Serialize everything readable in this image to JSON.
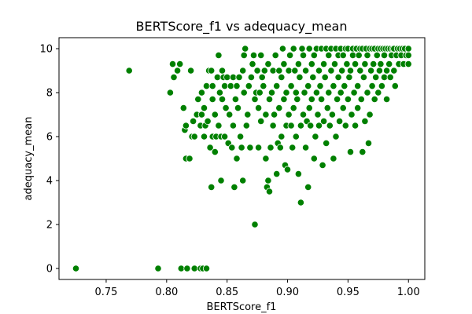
{
  "chart_data": {
    "type": "scatter",
    "title": "BERTScore_f1 vs adequacy_mean",
    "xlabel": "BERTScore_f1",
    "ylabel": "adequacy_mean",
    "xlim": [
      0.711,
      1.0135
    ],
    "ylim": [
      -0.5,
      10.5
    ],
    "xticks": [
      0.75,
      0.8,
      0.85,
      0.9,
      0.95,
      1.0
    ],
    "xtick_labels": [
      "0.75",
      "0.80",
      "0.85",
      "0.90",
      "0.95",
      "1.00"
    ],
    "yticks": [
      0,
      2,
      4,
      6,
      8,
      10
    ],
    "ytick_labels": [
      "0",
      "2",
      "4",
      "6",
      "8",
      "10"
    ],
    "grid": false,
    "legend": "none",
    "marker_color": "#008000",
    "marker_edge": "#ffffff",
    "points": [
      [
        0.725,
        0
      ],
      [
        0.793,
        0
      ],
      [
        0.812,
        0
      ],
      [
        0.817,
        0
      ],
      [
        0.823,
        0
      ],
      [
        0.828,
        0
      ],
      [
        0.83,
        0
      ],
      [
        0.833,
        0
      ],
      [
        0.769,
        9.0
      ],
      [
        0.803,
        8.0
      ],
      [
        0.806,
        8.7
      ],
      [
        0.805,
        9.3
      ],
      [
        0.809,
        9.0
      ],
      [
        0.811,
        9.3
      ],
      [
        0.82,
        9.0
      ],
      [
        0.814,
        7.3
      ],
      [
        0.815,
        6.3
      ],
      [
        0.816,
        6.5
      ],
      [
        0.816,
        5.0
      ],
      [
        0.819,
        5.0
      ],
      [
        0.821,
        6.0
      ],
      [
        0.823,
        6.0
      ],
      [
        0.822,
        6.7
      ],
      [
        0.825,
        7.0
      ],
      [
        0.826,
        7.7
      ],
      [
        0.828,
        6.5
      ],
      [
        0.829,
        7.0
      ],
      [
        0.829,
        8.0
      ],
      [
        0.831,
        7.3
      ],
      [
        0.831,
        6.0
      ],
      [
        0.832,
        6.5
      ],
      [
        0.833,
        8.3
      ],
      [
        0.834,
        6.7
      ],
      [
        0.835,
        9.0
      ],
      [
        0.836,
        5.5
      ],
      [
        0.837,
        3.7
      ],
      [
        0.837,
        9.0
      ],
      [
        0.838,
        8.3
      ],
      [
        0.838,
        7.7
      ],
      [
        0.838,
        6.0
      ],
      [
        0.84,
        7.0
      ],
      [
        0.84,
        5.3
      ],
      [
        0.841,
        6.0
      ],
      [
        0.842,
        8.7
      ],
      [
        0.843,
        9.7
      ],
      [
        0.843,
        6.5
      ],
      [
        0.844,
        8.0
      ],
      [
        0.845,
        4.0
      ],
      [
        0.845,
        6.0
      ],
      [
        0.846,
        9.0
      ],
      [
        0.846,
        7.7
      ],
      [
        0.847,
        8.7
      ],
      [
        0.848,
        8.3
      ],
      [
        0.848,
        6.0
      ],
      [
        0.849,
        7.3
      ],
      [
        0.85,
        8.7
      ],
      [
        0.851,
        5.7
      ],
      [
        0.852,
        7.0
      ],
      [
        0.853,
        8.3
      ],
      [
        0.854,
        5.5
      ],
      [
        0.855,
        6.5
      ],
      [
        0.855,
        8.7
      ],
      [
        0.856,
        3.7
      ],
      [
        0.857,
        7.7
      ],
      [
        0.858,
        5.0
      ],
      [
        0.858,
        8.3
      ],
      [
        0.859,
        7.3
      ],
      [
        0.86,
        8.7
      ],
      [
        0.861,
        6.0
      ],
      [
        0.862,
        5.5
      ],
      [
        0.863,
        4.0
      ],
      [
        0.863,
        9.0
      ],
      [
        0.864,
        8.0
      ],
      [
        0.864,
        9.7
      ],
      [
        0.865,
        10.0
      ],
      [
        0.866,
        6.5
      ],
      [
        0.867,
        7.0
      ],
      [
        0.868,
        8.3
      ],
      [
        0.869,
        5.5
      ],
      [
        0.87,
        8.7
      ],
      [
        0.871,
        9.3
      ],
      [
        0.872,
        9.7
      ],
      [
        0.873,
        7.7
      ],
      [
        0.873,
        2.0
      ],
      [
        0.874,
        8.0
      ],
      [
        0.875,
        9.0
      ],
      [
        0.876,
        5.5
      ],
      [
        0.876,
        7.3
      ],
      [
        0.877,
        8.0
      ],
      [
        0.878,
        6.7
      ],
      [
        0.878,
        9.7
      ],
      [
        0.879,
        8.7
      ],
      [
        0.88,
        8.3
      ],
      [
        0.881,
        9.0
      ],
      [
        0.882,
        5.0
      ],
      [
        0.882,
        7.0
      ],
      [
        0.883,
        3.7
      ],
      [
        0.884,
        4.0
      ],
      [
        0.884,
        9.3
      ],
      [
        0.885,
        3.5
      ],
      [
        0.885,
        7.7
      ],
      [
        0.886,
        5.5
      ],
      [
        0.887,
        8.0
      ],
      [
        0.888,
        9.0
      ],
      [
        0.888,
        6.5
      ],
      [
        0.889,
        7.0
      ],
      [
        0.89,
        9.7
      ],
      [
        0.891,
        4.3
      ],
      [
        0.891,
        8.3
      ],
      [
        0.892,
        5.7
      ],
      [
        0.893,
        7.3
      ],
      [
        0.893,
        9.0
      ],
      [
        0.894,
        5.5
      ],
      [
        0.895,
        8.7
      ],
      [
        0.895,
        6.0
      ],
      [
        0.896,
        10.0
      ],
      [
        0.897,
        7.7
      ],
      [
        0.897,
        9.3
      ],
      [
        0.898,
        4.7
      ],
      [
        0.899,
        6.5
      ],
      [
        0.899,
        8.0
      ],
      [
        0.9,
        4.5
      ],
      [
        0.901,
        9.0
      ],
      [
        0.901,
        7.0
      ],
      [
        0.902,
        9.7
      ],
      [
        0.903,
        6.5
      ],
      [
        0.903,
        8.3
      ],
      [
        0.904,
        5.5
      ],
      [
        0.905,
        7.3
      ],
      [
        0.905,
        10.0
      ],
      [
        0.906,
        9.0
      ],
      [
        0.907,
        6.0
      ],
      [
        0.907,
        8.0
      ],
      [
        0.908,
        7.7
      ],
      [
        0.909,
        9.3
      ],
      [
        0.909,
        4.3
      ],
      [
        0.91,
        8.7
      ],
      [
        0.911,
        3.0
      ],
      [
        0.911,
        6.5
      ],
      [
        0.912,
        10.0
      ],
      [
        0.913,
        7.0
      ],
      [
        0.913,
        9.7
      ],
      [
        0.914,
        8.0
      ],
      [
        0.915,
        5.5
      ],
      [
        0.915,
        9.0
      ],
      [
        0.916,
        6.7
      ],
      [
        0.917,
        3.7
      ],
      [
        0.917,
        8.3
      ],
      [
        0.918,
        7.3
      ],
      [
        0.918,
        10.0
      ],
      [
        0.919,
        6.5
      ],
      [
        0.92,
        9.3
      ],
      [
        0.92,
        7.7
      ],
      [
        0.921,
        8.7
      ],
      [
        0.922,
        5.0
      ],
      [
        0.922,
        9.7
      ],
      [
        0.923,
        6.0
      ],
      [
        0.924,
        8.0
      ],
      [
        0.924,
        10.0
      ],
      [
        0.925,
        7.0
      ],
      [
        0.926,
        9.0
      ],
      [
        0.926,
        6.5
      ],
      [
        0.927,
        8.3
      ],
      [
        0.928,
        10.0
      ],
      [
        0.928,
        7.7
      ],
      [
        0.929,
        4.7
      ],
      [
        0.93,
        9.3
      ],
      [
        0.93,
        6.7
      ],
      [
        0.931,
        8.7
      ],
      [
        0.932,
        5.7
      ],
      [
        0.932,
        10.0
      ],
      [
        0.933,
        7.3
      ],
      [
        0.934,
        9.7
      ],
      [
        0.934,
        8.0
      ],
      [
        0.935,
        6.5
      ],
      [
        0.936,
        9.0
      ],
      [
        0.936,
        10.0
      ],
      [
        0.937,
        7.0
      ],
      [
        0.938,
        8.3
      ],
      [
        0.938,
        5.0
      ],
      [
        0.939,
        9.3
      ],
      [
        0.94,
        6.0
      ],
      [
        0.94,
        10.0
      ],
      [
        0.941,
        7.7
      ],
      [
        0.942,
        8.7
      ],
      [
        0.942,
        9.7
      ],
      [
        0.943,
        6.7
      ],
      [
        0.944,
        10.0
      ],
      [
        0.944,
        8.0
      ],
      [
        0.945,
        9.0
      ],
      [
        0.946,
        7.3
      ],
      [
        0.946,
        9.7
      ],
      [
        0.947,
        8.3
      ],
      [
        0.948,
        10.0
      ],
      [
        0.948,
        6.5
      ],
      [
        0.949,
        9.3
      ],
      [
        0.95,
        7.7
      ],
      [
        0.95,
        10.0
      ],
      [
        0.951,
        8.7
      ],
      [
        0.952,
        9.0
      ],
      [
        0.952,
        5.3
      ],
      [
        0.953,
        7.0
      ],
      [
        0.954,
        10.0
      ],
      [
        0.954,
        9.7
      ],
      [
        0.955,
        8.0
      ],
      [
        0.956,
        9.3
      ],
      [
        0.956,
        6.5
      ],
      [
        0.957,
        10.0
      ],
      [
        0.958,
        8.3
      ],
      [
        0.958,
        7.3
      ],
      [
        0.959,
        9.7
      ],
      [
        0.96,
        10.0
      ],
      [
        0.96,
        9.0
      ],
      [
        0.961,
        7.7
      ],
      [
        0.962,
        10.0
      ],
      [
        0.962,
        5.3
      ],
      [
        0.963,
        8.7
      ],
      [
        0.964,
        9.3
      ],
      [
        0.964,
        6.7
      ],
      [
        0.965,
        10.0
      ],
      [
        0.966,
        8.0
      ],
      [
        0.966,
        9.7
      ],
      [
        0.967,
        5.7
      ],
      [
        0.968,
        10.0
      ],
      [
        0.968,
        7.0
      ],
      [
        0.969,
        9.0
      ],
      [
        0.97,
        8.3
      ],
      [
        0.97,
        10.0
      ],
      [
        0.971,
        9.3
      ],
      [
        0.972,
        7.7
      ],
      [
        0.972,
        10.0
      ],
      [
        0.973,
        8.7
      ],
      [
        0.974,
        9.7
      ],
      [
        0.975,
        10.0
      ],
      [
        0.975,
        8.0
      ],
      [
        0.976,
        9.0
      ],
      [
        0.977,
        10.0
      ],
      [
        0.977,
        9.3
      ],
      [
        0.978,
        8.3
      ],
      [
        0.979,
        10.0
      ],
      [
        0.98,
        9.7
      ],
      [
        0.98,
        8.7
      ],
      [
        0.981,
        10.0
      ],
      [
        0.982,
        9.0
      ],
      [
        0.982,
        7.7
      ],
      [
        0.983,
        10.0
      ],
      [
        0.984,
        9.3
      ],
      [
        0.985,
        10.0
      ],
      [
        0.985,
        8.7
      ],
      [
        0.986,
        9.7
      ],
      [
        0.987,
        10.0
      ],
      [
        0.988,
        9.0
      ],
      [
        0.988,
        10.0
      ],
      [
        0.989,
        8.3
      ],
      [
        0.99,
        9.7
      ],
      [
        0.991,
        10.0
      ],
      [
        0.992,
        9.3
      ],
      [
        0.993,
        10.0
      ],
      [
        0.994,
        9.7
      ],
      [
        0.995,
        10.0
      ],
      [
        0.996,
        9.3
      ],
      [
        0.997,
        10.0
      ],
      [
        0.998,
        9.7
      ],
      [
        1.0,
        10.0
      ],
      [
        1.0,
        9.7
      ],
      [
        1.0,
        9.3
      ]
    ]
  }
}
